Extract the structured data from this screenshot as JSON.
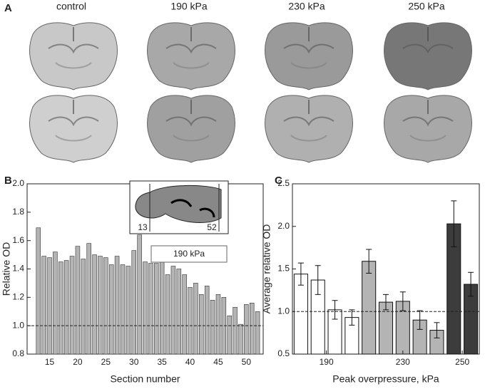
{
  "panel_a": {
    "label": "A",
    "columns": [
      "control",
      "190 kPa",
      "230 kPa",
      "250 kPa"
    ]
  },
  "chart_data": [
    {
      "type": "bar",
      "panel_label": "B",
      "x_label": "Section number",
      "y_label": "Relative OD",
      "x": [
        13,
        14,
        15,
        16,
        17,
        18,
        19,
        20,
        21,
        22,
        23,
        24,
        25,
        26,
        27,
        28,
        29,
        30,
        31,
        32,
        33,
        34,
        35,
        36,
        37,
        38,
        39,
        40,
        41,
        42,
        43,
        44,
        45,
        46,
        47,
        48,
        49,
        50,
        51,
        52
      ],
      "series": [
        {
          "name": "190 kPa",
          "color": "#b4b4b4",
          "values": [
            1.69,
            1.49,
            1.48,
            1.52,
            1.45,
            1.46,
            1.49,
            1.56,
            1.47,
            1.58,
            1.5,
            1.49,
            1.48,
            1.43,
            1.49,
            1.43,
            1.42,
            1.53,
            1.64,
            1.45,
            1.44,
            1.44,
            1.5,
            1.36,
            1.42,
            1.4,
            1.36,
            1.27,
            1.3,
            1.22,
            1.28,
            1.18,
            1.22,
            1.2,
            1.07,
            1.13,
            1.01,
            1.15,
            1.16,
            1.1
          ]
        }
      ],
      "xlim": [
        11,
        53
      ],
      "xticks": [
        15,
        20,
        25,
        30,
        35,
        40,
        45,
        50
      ],
      "ylim": [
        0.8,
        2.0
      ],
      "yticks": [
        0.8,
        {
          "value": 1,
          "label": "1.0"
        },
        1.2,
        1.4,
        1.6,
        1.8,
        {
          "value": 2,
          "label": "2.0"
        }
      ],
      "reference_line": 1,
      "inset_labels": [
        "13",
        "52"
      ]
    },
    {
      "type": "error_bar",
      "panel_label": "C",
      "x_label": "Peak overpressure, kPa",
      "y_label": "Average relative OD",
      "groups": [
        {
          "label": "190",
          "color": "#ffffff",
          "values": [
            1.44,
            1.37,
            1.02,
            0.93
          ],
          "errors": [
            0.13,
            0.17,
            0.11,
            0.09
          ]
        },
        {
          "label": "230",
          "color": "#b4b4b4",
          "values": [
            1.59,
            1.11,
            1.12,
            0.9,
            0.78
          ],
          "errors": [
            0.14,
            0.09,
            0.11,
            0.11,
            0.09
          ]
        },
        {
          "label": "250",
          "color": "#3c3c3c",
          "values": [
            2.03,
            1.32
          ],
          "errors": [
            0.27,
            0.14
          ]
        }
      ],
      "ylim": [
        0.5,
        2.5
      ],
      "yticks": [
        0.5,
        {
          "value": 1,
          "label": "1.0"
        },
        1.5,
        {
          "value": 2,
          "label": "2.0"
        },
        2.5
      ],
      "reference_line": 1
    }
  ]
}
